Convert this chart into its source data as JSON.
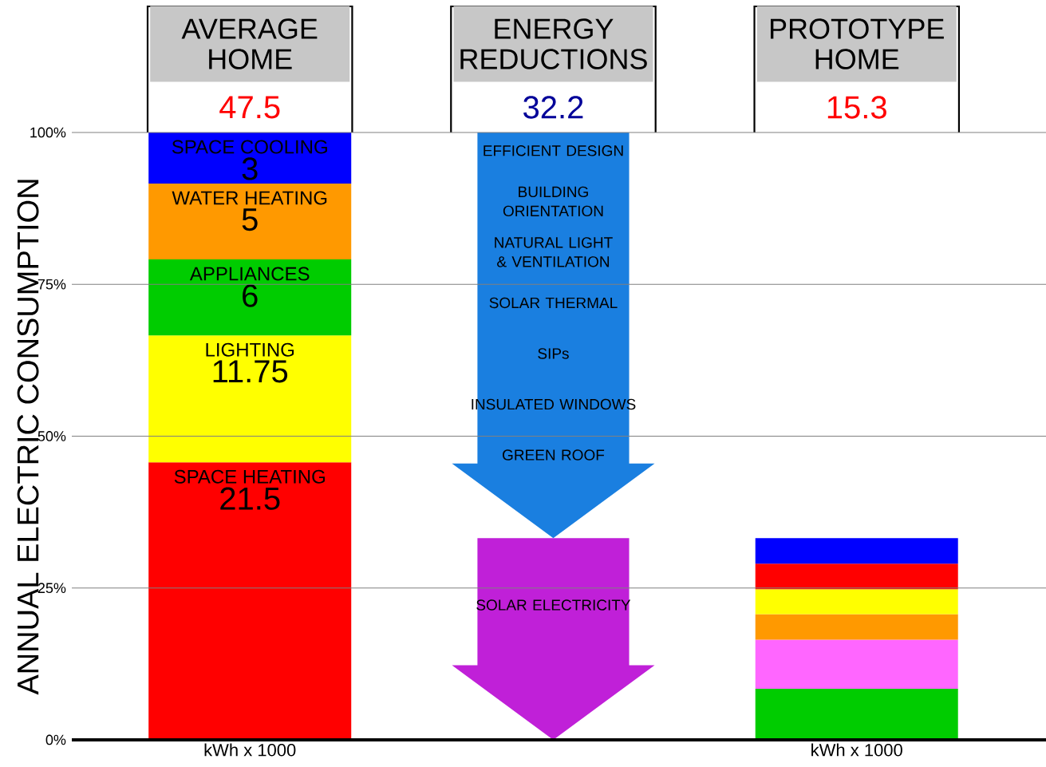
{
  "chart_data": {
    "type": "bar",
    "stacked": true,
    "categories": [
      "AVERAGE HOME",
      "ENERGY REDUCTIONS",
      "PROTOTYPE HOME"
    ],
    "ylabel": "ANNUAL ELECTRIC CONSUMPTION",
    "ylim": [
      0,
      100
    ],
    "yticks": [
      {
        "value": 0,
        "label": "0%"
      },
      {
        "value": 25,
        "label": "25%"
      },
      {
        "value": 50,
        "label": "50%"
      },
      {
        "value": 75,
        "label": "75%"
      },
      {
        "value": 100,
        "label": "100%"
      }
    ],
    "grid": "y",
    "legend": false,
    "series": [
      {
        "name": "SPACE HEATING",
        "color": "#ff0000",
        "values": [
          45.7,
          null,
          null
        ]
      },
      {
        "name": "LIGHTING",
        "color": "#ffff00",
        "values": [
          20.9,
          null,
          null
        ]
      },
      {
        "name": "APPLIANCES",
        "color": "#00cc00",
        "values": [
          12.5,
          null,
          null
        ]
      },
      {
        "name": "WATER HEATING",
        "color": "#ff9900",
        "values": [
          12.5,
          null,
          null
        ]
      },
      {
        "name": "SPACE COOLING",
        "color": "#0000ff",
        "values": [
          8.4,
          null,
          null
        ]
      },
      {
        "color": "#00cc00",
        "values": [
          null,
          null,
          8.4
        ]
      },
      {
        "color": "#ff66ff",
        "values": [
          null,
          null,
          8.1
        ]
      },
      {
        "color": "#ff9900",
        "values": [
          null,
          null,
          4.2
        ]
      },
      {
        "color": "#ffff00",
        "values": [
          null,
          null,
          4.1
        ]
      },
      {
        "color": "#ff0000",
        "values": [
          null,
          null,
          4.2
        ]
      },
      {
        "color": "#0000ff",
        "values": [
          null,
          null,
          4.2
        ]
      }
    ],
    "annotations": [
      "47.5",
      "32.2",
      "15.3",
      "21.5",
      "11.75",
      "6",
      "5",
      "3",
      "EFFICIENT DESIGN",
      "BUILDING ORIENTATION",
      "NATURAL LIGHT & VENTILATION",
      "SOLAR THERMAL",
      "SIPs",
      "INSULATED WINDOWS",
      "GREEN ROOF",
      "SOLAR ELECTRICITY",
      "kWh x 1000",
      "kWh x 1000"
    ]
  }
}
